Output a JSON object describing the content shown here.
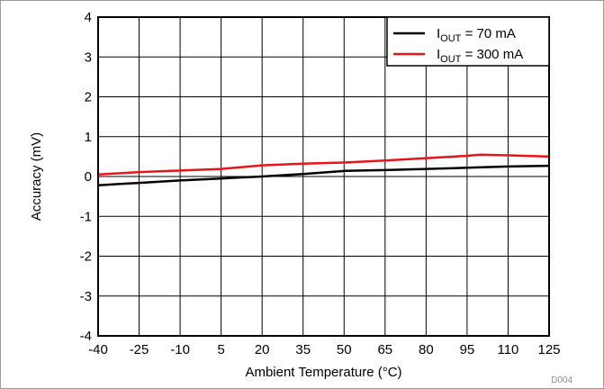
{
  "chart_data": {
    "type": "line",
    "title": "",
    "xlabel": "Ambient Temperature (°C)",
    "ylabel": "Accuracy (mV)",
    "xlim": [
      -40,
      125
    ],
    "ylim": [
      -4,
      4
    ],
    "xticks": [
      -40,
      -25,
      -10,
      5,
      20,
      35,
      50,
      65,
      80,
      95,
      110,
      125
    ],
    "yticks": [
      -4,
      -3,
      -2,
      -1,
      0,
      1,
      2,
      3,
      4
    ],
    "grid": true,
    "legend_position": "top-right",
    "series": [
      {
        "name_main": "I",
        "name_sub": "OUT",
        "name_rest": " = 70 mA",
        "color": "#000000",
        "x": [
          -40,
          -25,
          -10,
          5,
          20,
          35,
          50,
          65,
          80,
          95,
          110,
          125
        ],
        "y": [
          -0.22,
          -0.16,
          -0.1,
          -0.05,
          0.0,
          0.06,
          0.14,
          0.16,
          0.19,
          0.22,
          0.25,
          0.27
        ]
      },
      {
        "name_main": "I",
        "name_sub": "OUT",
        "name_rest": " = 300 mA",
        "color": "#e8141a",
        "x": [
          -40,
          -25,
          -10,
          5,
          20,
          35,
          50,
          65,
          80,
          95,
          100,
          110,
          125
        ],
        "y": [
          0.05,
          0.11,
          0.15,
          0.19,
          0.28,
          0.32,
          0.35,
          0.4,
          0.46,
          0.52,
          0.55,
          0.53,
          0.5
        ]
      }
    ],
    "figure_id": "D004"
  }
}
